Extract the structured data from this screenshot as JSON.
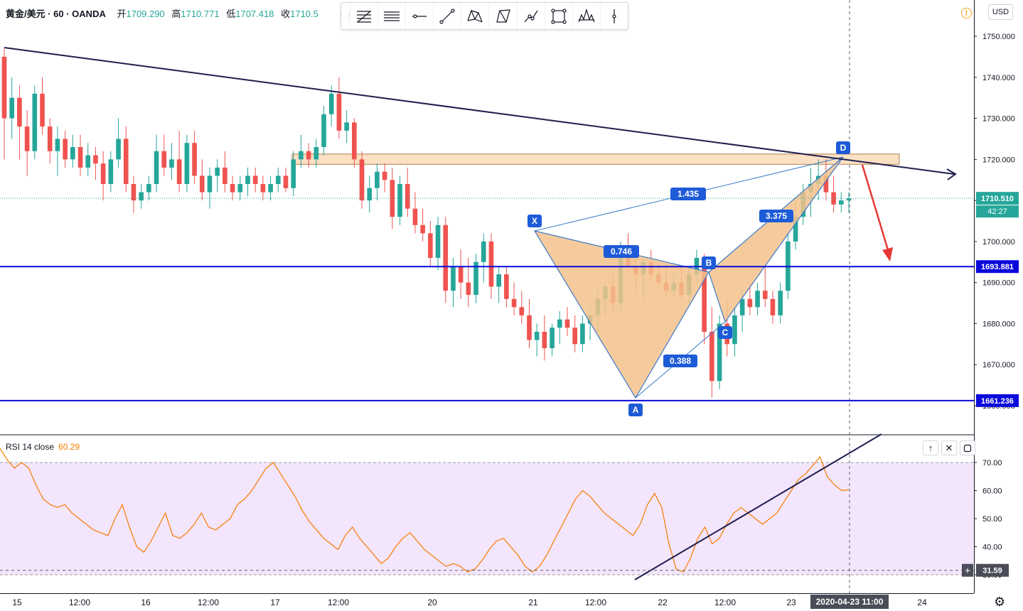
{
  "header": {
    "symbol": "黄金/美元 · 60 · OANDA",
    "open_label": "开",
    "open_value": "1709.290",
    "high_label": "高",
    "high_value": "1710.771",
    "low_label": "低",
    "low_value": "1707.418",
    "close_label": "收",
    "close_value": "1710.5"
  },
  "toolbar": {
    "icons": [
      "fib-retracement-icon",
      "horizontal-lines-icon",
      "horizontal-ray-icon",
      "trend-line-icon",
      "xabcd-pattern-icon",
      "triangle-pattern-icon",
      "path-icon",
      "rectangle-icon",
      "head-shoulders-icon",
      "cursor-line-icon"
    ]
  },
  "currency": "USD",
  "alert_icon": "!",
  "colors": {
    "up": "#26a69a",
    "down": "#ef5350",
    "level": "#0a0adc",
    "pattern_fill": "#f3c28c",
    "pattern_line": "#3c78c8",
    "trend": "#1e1e50",
    "rsi": "#f57c00",
    "rsi_band": "#f3e5fb",
    "arrow": "#e53935",
    "label_bg": "#1e5bd8"
  },
  "chart_data": [
    {
      "type": "candlestick",
      "title": "黄金/美元 · 60 · OANDA",
      "x_tick_labels": [
        "15",
        "12:00",
        "16",
        "12:00",
        "17",
        "12:00",
        "20",
        "21",
        "12:00",
        "22",
        "12:00",
        "23",
        "2020-04-23  11:00",
        "24"
      ],
      "crosshair_time": "2020-04-23  11:00",
      "y_tick_labels": [
        "1750.000",
        "1740.000",
        "1730.000",
        "1720.000",
        "1710.000",
        "1700.000",
        "1690.000",
        "1680.000",
        "1670.000",
        "1660.000"
      ],
      "ylim": [
        1658,
        1755
      ],
      "last_price": "1710.510",
      "countdown": "42:27",
      "levels": [
        {
          "value": 1693.881,
          "label": "1693.881"
        },
        {
          "value": 1661.236,
          "label": "1661.236"
        }
      ],
      "resistance_zone": [
        1718.8,
        1721.3
      ],
      "candles": [
        [
          1745,
          1747,
          1720,
          1730
        ],
        [
          1730,
          1740,
          1725,
          1735
        ],
        [
          1735,
          1738,
          1720,
          1728
        ],
        [
          1728,
          1732,
          1716,
          1722
        ],
        [
          1722,
          1738,
          1720,
          1736
        ],
        [
          1736,
          1740,
          1726,
          1728
        ],
        [
          1728,
          1730,
          1719,
          1722
        ],
        [
          1722,
          1728,
          1716,
          1725
        ],
        [
          1725,
          1727,
          1718,
          1720
        ],
        [
          1720,
          1726,
          1718,
          1723
        ],
        [
          1723,
          1726,
          1716,
          1718
        ],
        [
          1718,
          1724,
          1716,
          1721
        ],
        [
          1721,
          1723,
          1715,
          1719
        ],
        [
          1719,
          1722,
          1710,
          1714
        ],
        [
          1714,
          1722,
          1712,
          1720
        ],
        [
          1720,
          1730,
          1718,
          1725
        ],
        [
          1725,
          1728,
          1712,
          1714
        ],
        [
          1714,
          1716,
          1707,
          1710
        ],
        [
          1710,
          1714,
          1708,
          1712
        ],
        [
          1712,
          1716,
          1710,
          1714
        ],
        [
          1714,
          1726,
          1712,
          1722
        ],
        [
          1722,
          1726,
          1716,
          1718
        ],
        [
          1718,
          1724,
          1715,
          1720
        ],
        [
          1720,
          1727,
          1712,
          1714
        ],
        [
          1714,
          1726,
          1712,
          1724
        ],
        [
          1724,
          1727,
          1714,
          1716
        ],
        [
          1716,
          1720,
          1710,
          1712
        ],
        [
          1712,
          1718,
          1708,
          1716
        ],
        [
          1716,
          1720,
          1712,
          1718
        ],
        [
          1718,
          1722,
          1712,
          1714
        ],
        [
          1714,
          1716,
          1710,
          1712
        ],
        [
          1712,
          1716,
          1710,
          1714
        ],
        [
          1714,
          1718,
          1711,
          1716
        ],
        [
          1716,
          1718,
          1712,
          1714
        ],
        [
          1714,
          1716,
          1710,
          1712
        ],
        [
          1712,
          1716,
          1710,
          1714
        ],
        [
          1714,
          1718,
          1712,
          1716
        ],
        [
          1716,
          1718,
          1712,
          1713
        ],
        [
          1713,
          1722,
          1711,
          1720
        ],
        [
          1720,
          1726,
          1718,
          1722
        ],
        [
          1722,
          1724,
          1718,
          1720
        ],
        [
          1720,
          1725,
          1718,
          1723
        ],
        [
          1723,
          1733,
          1721,
          1731
        ],
        [
          1731,
          1738,
          1728,
          1736
        ],
        [
          1736,
          1740,
          1725,
          1727
        ],
        [
          1727,
          1732,
          1724,
          1729
        ],
        [
          1729,
          1730,
          1718,
          1720
        ],
        [
          1720,
          1722,
          1708,
          1710
        ],
        [
          1710,
          1716,
          1707,
          1713
        ],
        [
          1713,
          1719,
          1710,
          1717
        ],
        [
          1717,
          1719,
          1712,
          1715
        ],
        [
          1715,
          1718,
          1703,
          1706
        ],
        [
          1706,
          1716,
          1704,
          1714
        ],
        [
          1714,
          1718,
          1706,
          1708
        ],
        [
          1708,
          1712,
          1702,
          1704
        ],
        [
          1704,
          1708,
          1700,
          1702
        ],
        [
          1702,
          1705,
          1694,
          1696
        ],
        [
          1696,
          1706,
          1693,
          1704
        ],
        [
          1704,
          1706,
          1685,
          1688
        ],
        [
          1688,
          1696,
          1684,
          1694
        ],
        [
          1694,
          1698,
          1686,
          1690
        ],
        [
          1690,
          1696,
          1684,
          1687
        ],
        [
          1687,
          1697,
          1685,
          1695
        ],
        [
          1695,
          1702,
          1690,
          1700
        ],
        [
          1700,
          1702,
          1686,
          1689
        ],
        [
          1689,
          1694,
          1685,
          1692
        ],
        [
          1692,
          1694,
          1684,
          1686
        ],
        [
          1686,
          1690,
          1682,
          1684
        ],
        [
          1684,
          1688,
          1680,
          1682
        ],
        [
          1682,
          1686,
          1674,
          1676
        ],
        [
          1676,
          1680,
          1672,
          1678
        ],
        [
          1678,
          1682,
          1671,
          1674
        ],
        [
          1674,
          1680,
          1672,
          1679
        ],
        [
          1679,
          1683,
          1675,
          1681
        ],
        [
          1681,
          1684,
          1677,
          1679
        ],
        [
          1679,
          1682,
          1673,
          1675
        ],
        [
          1675,
          1682,
          1673,
          1680
        ],
        [
          1680,
          1684,
          1676,
          1682
        ],
        [
          1682,
          1688,
          1678,
          1686
        ],
        [
          1686,
          1690,
          1682,
          1689
        ],
        [
          1689,
          1692,
          1683,
          1685
        ],
        [
          1685,
          1700,
          1683,
          1698
        ],
        [
          1698,
          1702,
          1692,
          1694
        ],
        [
          1694,
          1699,
          1688,
          1692
        ],
        [
          1692,
          1696,
          1686,
          1695
        ],
        [
          1695,
          1698,
          1690,
          1692
        ],
        [
          1692,
          1695,
          1688,
          1690
        ],
        [
          1690,
          1694,
          1686,
          1688
        ],
        [
          1688,
          1692,
          1686,
          1690
        ],
        [
          1690,
          1694,
          1686,
          1687
        ],
        [
          1687,
          1694,
          1685,
          1692
        ],
        [
          1692,
          1698,
          1690,
          1696
        ],
        [
          1696,
          1697,
          1675,
          1678
        ],
        [
          1678,
          1684,
          1662,
          1666
        ],
        [
          1666,
          1682,
          1664,
          1680
        ],
        [
          1680,
          1686,
          1672,
          1675
        ],
        [
          1675,
          1684,
          1672,
          1682
        ],
        [
          1682,
          1688,
          1678,
          1686
        ],
        [
          1686,
          1690,
          1682,
          1684
        ],
        [
          1684,
          1690,
          1682,
          1688
        ],
        [
          1688,
          1694,
          1684,
          1686
        ],
        [
          1686,
          1688,
          1680,
          1682
        ],
        [
          1682,
          1690,
          1680,
          1688
        ],
        [
          1688,
          1702,
          1686,
          1700
        ],
        [
          1700,
          1710,
          1698,
          1706
        ],
        [
          1706,
          1714,
          1704,
          1712
        ],
        [
          1712,
          1718,
          1706,
          1714
        ],
        [
          1714,
          1720,
          1710,
          1716
        ],
        [
          1716,
          1720,
          1710,
          1712
        ],
        [
          1712,
          1716,
          1707,
          1709
        ],
        [
          1709,
          1712,
          1707,
          1710
        ],
        [
          1710,
          1712,
          1707,
          1710.5
        ]
      ]
    },
    {
      "type": "line",
      "title": "RSI 14 close",
      "last_value": "60.29",
      "crosshair_value": "31.59",
      "y_tick_labels": [
        "70.00",
        "60.00",
        "50.00",
        "40.00",
        "30.00"
      ],
      "band": [
        30,
        70
      ],
      "ylim": [
        29,
        77
      ],
      "values": [
        75,
        71,
        68,
        70,
        68,
        62,
        57,
        55,
        54,
        55,
        52,
        50,
        48,
        46,
        45,
        44,
        50,
        55,
        47,
        40,
        38,
        42,
        47,
        52,
        44,
        43,
        45,
        48,
        52,
        47,
        46,
        48,
        50,
        55,
        57,
        60,
        64,
        68,
        70,
        66,
        62,
        58,
        53,
        49,
        46,
        43,
        41,
        39,
        44,
        47,
        43,
        40,
        37,
        34,
        36,
        40,
        43,
        45,
        42,
        39,
        37,
        35,
        33,
        34,
        33,
        31,
        32,
        35,
        39,
        42,
        43,
        40,
        37,
        33,
        31,
        33,
        37,
        42,
        47,
        52,
        57,
        60,
        58,
        55,
        52,
        50,
        48,
        46,
        44,
        48,
        55,
        59,
        54,
        41,
        32,
        31,
        36,
        43,
        47,
        41,
        43,
        48,
        52,
        54,
        52,
        50,
        48,
        50,
        52,
        56,
        60,
        64,
        66,
        69,
        72,
        65,
        62,
        60,
        60.29
      ]
    }
  ]
}
